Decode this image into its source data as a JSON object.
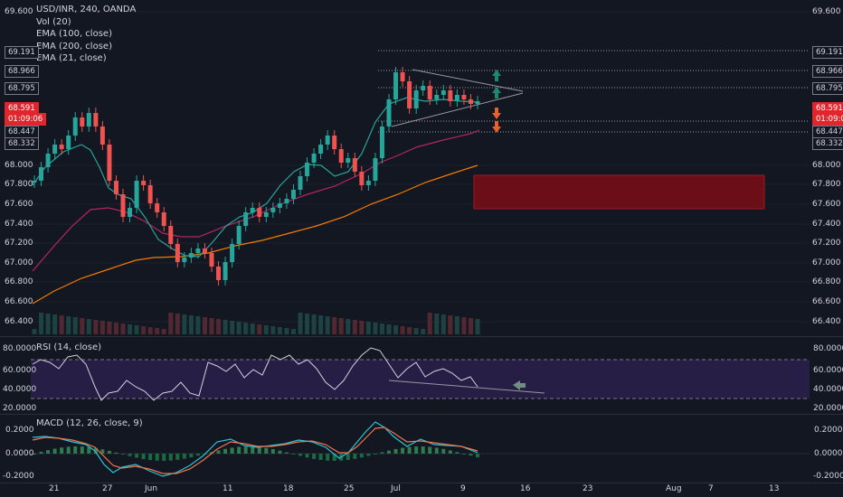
{
  "header": {
    "symbol_line": "USD/INR, 240, OANDA",
    "indicators": [
      "Vol (20)",
      "EMA (100, close)",
      "EMA (200, close)",
      "EMA (21, close)"
    ]
  },
  "price_axis": {
    "ticks": [
      "69.600",
      "68.000",
      "67.800",
      "67.600",
      "67.400",
      "67.200",
      "67.000",
      "66.800",
      "66.600",
      "66.400"
    ],
    "tags": [
      "69.191",
      "68.966",
      "68.795",
      "68.447",
      "68.332"
    ],
    "current_price": "68.591",
    "countdown": "01:09:06"
  },
  "rsi": {
    "title": "RSI (14, close)",
    "ticks": [
      "80.0000",
      "60.0000",
      "40.0000",
      "20.0000"
    ]
  },
  "macd": {
    "title": "MACD (12, 26, close, 9)",
    "ticks": [
      "0.2000",
      "0.0000",
      "-0.2000"
    ]
  },
  "time_axis": [
    "21",
    "27",
    "Jun",
    "11",
    "18",
    "25",
    "Jul",
    "9",
    "16",
    "23",
    "Aug",
    "7",
    "13"
  ],
  "colors": {
    "background": "#131722",
    "up": "#26a69a",
    "down": "#ef5350",
    "ema21": "#26a69a",
    "ema100": "#b32566",
    "ema200": "#f57c00",
    "zone": "#7a1019",
    "arrow_up": "#1b8a6b",
    "arrow_down": "#e8602c"
  }
}
